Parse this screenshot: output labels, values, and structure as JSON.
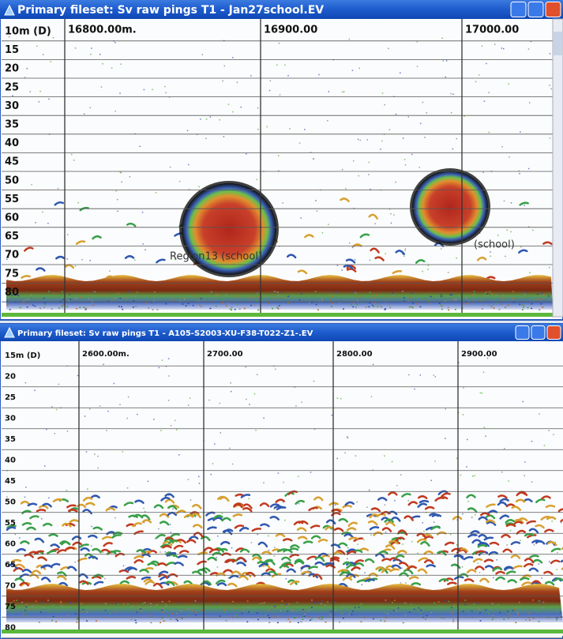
{
  "windows": [
    {
      "title": "Primary fileset: Sv raw pings T1 - Jan27school.EV",
      "depth_label": "10m (D)",
      "x_labels": [
        "16800.00m.",
        "16900.00",
        "17000.00"
      ],
      "depth_labels": [
        "15",
        "20",
        "25",
        "30",
        "35",
        "40",
        "45",
        "50",
        "55",
        "60",
        "65",
        "70",
        "75",
        "80"
      ],
      "region_labels": [
        "Region13 (school)",
        "(school)"
      ]
    },
    {
      "title": "Primary fileset: Sv raw pings T1 - A105-S2003-XU-F38-T022-Z1-.EV",
      "depth_label": "15m (D)",
      "x_labels": [
        "2600.00m.",
        "2700.00",
        "2800.00",
        "2900.00"
      ],
      "depth_labels": [
        "20",
        "25",
        "30",
        "35",
        "40",
        "45",
        "50",
        "55",
        "60",
        "65",
        "70",
        "75",
        "80"
      ],
      "region_labels": []
    }
  ]
}
